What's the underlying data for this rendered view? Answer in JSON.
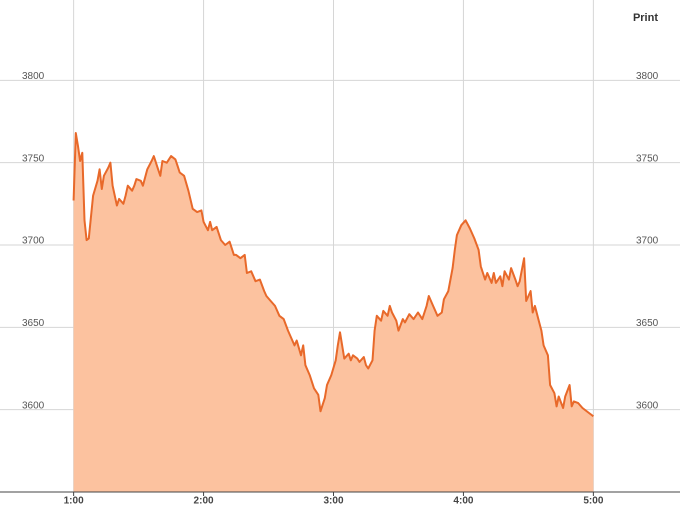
{
  "toolbar": {
    "print": "Print"
  },
  "chart_data": {
    "type": "area",
    "x": [
      60,
      61,
      62,
      63,
      64,
      65,
      66,
      67,
      69,
      71,
      72,
      73,
      74,
      76,
      77,
      78,
      80,
      81,
      83,
      84,
      85,
      87,
      88,
      89,
      91,
      92,
      94,
      96,
      97,
      99,
      100,
      101,
      103,
      105,
      107,
      108,
      109,
      111,
      113,
      115,
      117,
      119,
      120,
      122,
      123,
      124,
      126,
      128,
      130,
      132,
      134,
      135,
      137,
      139,
      140,
      142,
      144,
      146,
      148,
      149,
      151,
      153,
      155,
      157,
      159,
      160,
      162,
      163,
      165,
      166,
      167,
      169,
      171,
      173,
      174,
      176,
      177,
      179,
      181,
      182,
      183,
      185,
      187,
      188,
      189,
      191,
      192,
      194,
      195,
      196,
      198,
      199,
      200,
      202,
      203,
      205,
      206,
      207,
      209,
      210,
      212,
      213,
      215,
      217,
      219,
      221,
      223,
      224,
      226,
      228,
      230,
      231,
      233,
      235,
      236,
      237,
      239,
      241,
      243,
      245,
      247,
      248,
      250,
      251,
      253,
      254,
      255,
      257,
      258,
      259,
      261,
      262,
      264,
      265,
      266,
      268,
      269,
      271,
      272,
      273,
      275,
      276,
      277,
      279,
      280,
      282,
      283,
      284,
      286,
      287,
      289,
      290,
      291,
      293,
      295,
      298,
      300
    ],
    "series": [
      {
        "color": "#e8692a",
        "fill": "#fcc29f",
        "values": [
          3727,
          3768,
          3760,
          3751,
          3756,
          3715,
          3703,
          3704,
          3730,
          3739,
          3746,
          3734,
          3742,
          3747,
          3750,
          3736,
          3724,
          3728,
          3725,
          3730,
          3736,
          3733,
          3736,
          3740,
          3739,
          3736,
          3746,
          3751,
          3754,
          3746,
          3742,
          3751,
          3750,
          3754,
          3752,
          3748,
          3744,
          3742,
          3733,
          3722,
          3720,
          3721,
          3714,
          3709,
          3714,
          3709,
          3711,
          3703,
          3700,
          3702,
          3694,
          3694,
          3692,
          3694,
          3683,
          3684,
          3678,
          3679,
          3672,
          3669,
          3666,
          3663,
          3657,
          3655,
          3648,
          3645,
          3639,
          3642,
          3633,
          3639,
          3627,
          3621,
          3613,
          3609,
          3599,
          3607,
          3615,
          3621,
          3630,
          3639,
          3647,
          3631,
          3634,
          3630,
          3633,
          3631,
          3629,
          3632,
          3627,
          3625,
          3630,
          3648,
          3657,
          3654,
          3660,
          3657,
          3663,
          3659,
          3654,
          3648,
          3655,
          3653,
          3658,
          3655,
          3659,
          3655,
          3663,
          3669,
          3663,
          3657,
          3659,
          3667,
          3672,
          3686,
          3697,
          3706,
          3712,
          3715,
          3710,
          3704,
          3697,
          3687,
          3679,
          3683,
          3677,
          3683,
          3677,
          3681,
          3675,
          3684,
          3679,
          3686,
          3679,
          3675,
          3678,
          3692,
          3666,
          3672,
          3659,
          3663,
          3653,
          3648,
          3639,
          3633,
          3615,
          3610,
          3602,
          3608,
          3601,
          3608,
          3615,
          3602,
          3605,
          3604,
          3601,
          3598,
          3596
        ]
      }
    ],
    "xlim": [
      26,
      340
    ],
    "xticks": [
      {
        "value": 60,
        "label": "1:00"
      },
      {
        "value": 120,
        "label": "2:00"
      },
      {
        "value": 180,
        "label": "3:00"
      },
      {
        "value": 240,
        "label": "4:00"
      },
      {
        "value": 300,
        "label": "5:00"
      }
    ],
    "ylim": [
      3550,
      3850
    ],
    "yticks": [
      3600,
      3650,
      3700,
      3750,
      3800
    ],
    "y2lim": [
      3550,
      3850
    ],
    "y2ticks": [
      3600,
      3650,
      3700,
      3750,
      3800
    ],
    "grid": true
  }
}
